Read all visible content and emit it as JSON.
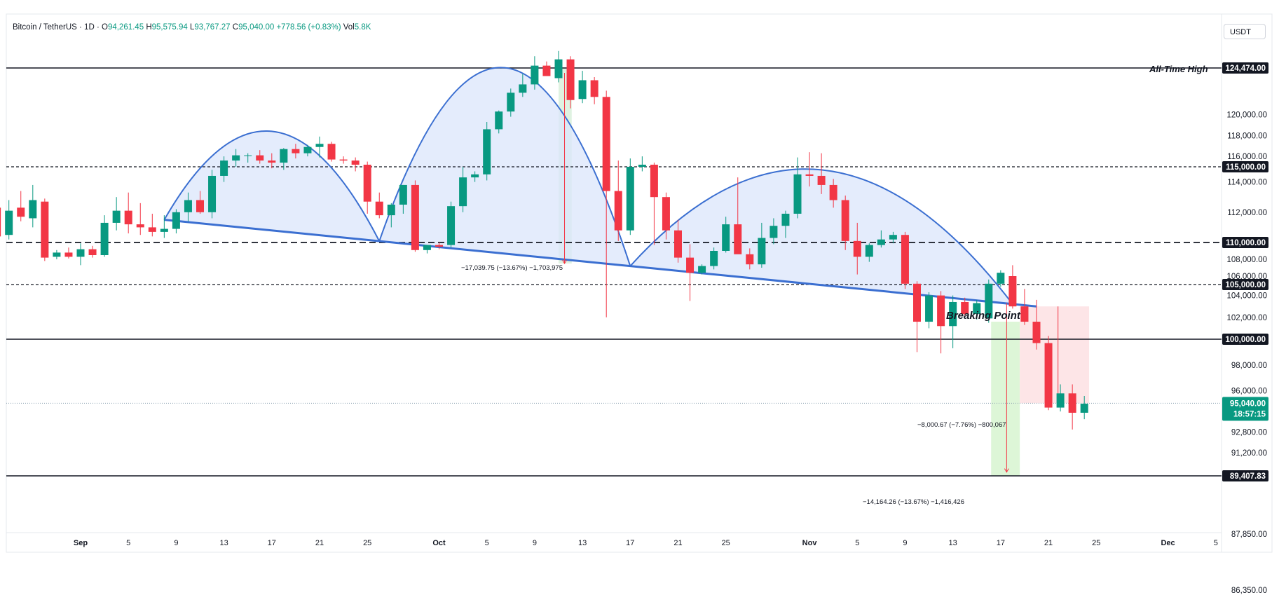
{
  "header": {
    "symbol": "Bitcoin / TetherUS · 1D ·",
    "o_label": "O",
    "o_value": "94,261.45",
    "h_label": "H",
    "h_value": "95,575.94",
    "l_label": "L",
    "l_value": "93,767.27",
    "c_label": "C",
    "c_value": "95,040.00",
    "change": "+778.56 (+0.83%)",
    "vol_label": "Vol",
    "vol_value": "5.8K"
  },
  "currency_button": "USDT",
  "colors": {
    "up": "#089981",
    "down": "#f23645",
    "pattern": "#3b6fd1",
    "pattern_fill": "#dbe5fb",
    "level": "#131722"
  },
  "chart_data": {
    "type": "candlestick",
    "y_axis_ticks": [
      "120,000.00",
      "118,000.00",
      "116,000.00",
      "114,000.00",
      "112,000.00",
      "108,000.00",
      "106,000.00",
      "104,000.00",
      "102,000.00",
      "98,000.00",
      "96,000.00",
      "92,800.00",
      "91,200.00",
      "87,850.00",
      "86,350.00"
    ],
    "x_axis_ticks": [
      {
        "label": "Sep",
        "day": 0
      },
      {
        "label": "5",
        "day": 4
      },
      {
        "label": "9",
        "day": 8
      },
      {
        "label": "13",
        "day": 12
      },
      {
        "label": "17",
        "day": 16
      },
      {
        "label": "21",
        "day": 20
      },
      {
        "label": "25",
        "day": 24
      },
      {
        "label": "Oct",
        "day": 30
      },
      {
        "label": "5",
        "day": 34
      },
      {
        "label": "9",
        "day": 38
      },
      {
        "label": "13",
        "day": 42
      },
      {
        "label": "17",
        "day": 46
      },
      {
        "label": "21",
        "day": 50
      },
      {
        "label": "25",
        "day": 54
      },
      {
        "label": "Nov",
        "day": 61
      },
      {
        "label": "5",
        "day": 65
      },
      {
        "label": "9",
        "day": 69
      },
      {
        "label": "13",
        "day": 73
      },
      {
        "label": "17",
        "day": 77
      },
      {
        "label": "21",
        "day": 81
      },
      {
        "label": "25",
        "day": 85
      },
      {
        "label": "Dec",
        "day": 91
      },
      {
        "label": "5",
        "day": 95
      }
    ],
    "candles": [
      {
        "t": -7,
        "o": 112300,
        "h": 113200,
        "l": 109200,
        "c": 110400
      },
      {
        "t": -6,
        "o": 110500,
        "h": 112800,
        "l": 110200,
        "c": 112100
      },
      {
        "t": -5,
        "o": 112300,
        "h": 113400,
        "l": 111400,
        "c": 111700
      },
      {
        "t": -4,
        "o": 111600,
        "h": 113800,
        "l": 111000,
        "c": 112800
      },
      {
        "t": -3,
        "o": 112700,
        "h": 112900,
        "l": 107800,
        "c": 108200
      },
      {
        "t": -2,
        "o": 108300,
        "h": 109100,
        "l": 108000,
        "c": 108800
      },
      {
        "t": -1,
        "o": 108800,
        "h": 109400,
        "l": 108100,
        "c": 108300
      },
      {
        "t": 0,
        "o": 108300,
        "h": 109900,
        "l": 107300,
        "c": 109200
      },
      {
        "t": 1,
        "o": 109200,
        "h": 109600,
        "l": 108200,
        "c": 108500
      },
      {
        "t": 2,
        "o": 108500,
        "h": 111800,
        "l": 108300,
        "c": 111300
      },
      {
        "t": 3,
        "o": 111300,
        "h": 113000,
        "l": 110800,
        "c": 112100
      },
      {
        "t": 4,
        "o": 112100,
        "h": 113300,
        "l": 110600,
        "c": 111200
      },
      {
        "t": 5,
        "o": 111200,
        "h": 112600,
        "l": 110500,
        "c": 111000
      },
      {
        "t": 6,
        "o": 111000,
        "h": 111900,
        "l": 110400,
        "c": 110700
      },
      {
        "t": 7,
        "o": 110700,
        "h": 111800,
        "l": 110300,
        "c": 110900
      },
      {
        "t": 8,
        "o": 110900,
        "h": 112200,
        "l": 110600,
        "c": 112000
      },
      {
        "t": 9,
        "o": 112000,
        "h": 113300,
        "l": 111400,
        "c": 112800
      },
      {
        "t": 10,
        "o": 112800,
        "h": 113400,
        "l": 111900,
        "c": 112000
      },
      {
        "t": 11,
        "o": 112000,
        "h": 114800,
        "l": 111600,
        "c": 114400
      },
      {
        "t": 12,
        "o": 114400,
        "h": 116000,
        "l": 114000,
        "c": 115600
      },
      {
        "t": 13,
        "o": 115600,
        "h": 116700,
        "l": 115000,
        "c": 116100
      },
      {
        "t": 14,
        "o": 116100,
        "h": 116300,
        "l": 115400,
        "c": 116100
      },
      {
        "t": 15,
        "o": 116100,
        "h": 116600,
        "l": 115300,
        "c": 115600
      },
      {
        "t": 16,
        "o": 115600,
        "h": 116300,
        "l": 114900,
        "c": 115400
      },
      {
        "t": 17,
        "o": 115400,
        "h": 116800,
        "l": 114800,
        "c": 116700
      },
      {
        "t": 18,
        "o": 116700,
        "h": 117200,
        "l": 115800,
        "c": 116300
      },
      {
        "t": 19,
        "o": 116300,
        "h": 117100,
        "l": 116000,
        "c": 116900
      },
      {
        "t": 20,
        "o": 116900,
        "h": 117900,
        "l": 115900,
        "c": 117200
      },
      {
        "t": 21,
        "o": 117200,
        "h": 117400,
        "l": 115500,
        "c": 115700
      },
      {
        "t": 22,
        "o": 115700,
        "h": 116000,
        "l": 115300,
        "c": 115600
      },
      {
        "t": 23,
        "o": 115600,
        "h": 115900,
        "l": 114700,
        "c": 115200
      },
      {
        "t": 24,
        "o": 115200,
        "h": 115500,
        "l": 111900,
        "c": 112700
      },
      {
        "t": 25,
        "o": 112700,
        "h": 113300,
        "l": 111600,
        "c": 111800
      },
      {
        "t": 26,
        "o": 111800,
        "h": 112600,
        "l": 111000,
        "c": 112500
      },
      {
        "t": 27,
        "o": 112500,
        "h": 113800,
        "l": 111900,
        "c": 113800
      },
      {
        "t": 28,
        "o": 113800,
        "h": 114100,
        "l": 108900,
        "c": 109100
      },
      {
        "t": 29,
        "o": 109100,
        "h": 109700,
        "l": 108700,
        "c": 109700
      },
      {
        "t": 30,
        "o": 109700,
        "h": 110000,
        "l": 109200,
        "c": 109500
      },
      {
        "t": 31,
        "o": 109700,
        "h": 112700,
        "l": 109400,
        "c": 112400
      },
      {
        "t": 32,
        "o": 112400,
        "h": 115000,
        "l": 112000,
        "c": 114300
      },
      {
        "t": 33,
        "o": 114300,
        "h": 114700,
        "l": 114000,
        "c": 114500
      },
      {
        "t": 34,
        "o": 114500,
        "h": 119300,
        "l": 114100,
        "c": 118600
      },
      {
        "t": 35,
        "o": 118600,
        "h": 120400,
        "l": 118200,
        "c": 120300
      },
      {
        "t": 36,
        "o": 120300,
        "h": 122500,
        "l": 119800,
        "c": 122100
      },
      {
        "t": 37,
        "o": 122100,
        "h": 123900,
        "l": 121700,
        "c": 122900
      },
      {
        "t": 38,
        "o": 122900,
        "h": 125600,
        "l": 122400,
        "c": 124700
      },
      {
        "t": 39,
        "o": 124700,
        "h": 125100,
        "l": 123900,
        "c": 123700
      },
      {
        "t": 40,
        "o": 123500,
        "h": 126100,
        "l": 123100,
        "c": 125300
      },
      {
        "t": 41,
        "o": 125300,
        "h": 125600,
        "l": 120600,
        "c": 121400
      },
      {
        "t": 42,
        "o": 121500,
        "h": 124200,
        "l": 121100,
        "c": 123300
      },
      {
        "t": 43,
        "o": 123300,
        "h": 123600,
        "l": 121000,
        "c": 121700
      },
      {
        "t": 44,
        "o": 121700,
        "h": 122300,
        "l": 102000,
        "c": 113400
      },
      {
        "t": 45,
        "o": 113400,
        "h": 115600,
        "l": 110100,
        "c": 110800
      },
      {
        "t": 46,
        "o": 110800,
        "h": 115800,
        "l": 110500,
        "c": 115000
      },
      {
        "t": 47,
        "o": 115000,
        "h": 116000,
        "l": 114700,
        "c": 115200
      },
      {
        "t": 48,
        "o": 115200,
        "h": 115400,
        "l": 109700,
        "c": 113000
      },
      {
        "t": 49,
        "o": 113000,
        "h": 113300,
        "l": 110200,
        "c": 110800
      },
      {
        "t": 50,
        "o": 110800,
        "h": 111500,
        "l": 107600,
        "c": 108200
      },
      {
        "t": 51,
        "o": 108200,
        "h": 109800,
        "l": 103500,
        "c": 106400
      },
      {
        "t": 52,
        "o": 106400,
        "h": 107400,
        "l": 106200,
        "c": 107200
      },
      {
        "t": 53,
        "o": 107200,
        "h": 109400,
        "l": 106800,
        "c": 109000
      },
      {
        "t": 54,
        "o": 109000,
        "h": 111700,
        "l": 108800,
        "c": 111200
      },
      {
        "t": 55,
        "o": 111200,
        "h": 114300,
        "l": 108700,
        "c": 108600
      },
      {
        "t": 56,
        "o": 108600,
        "h": 109300,
        "l": 106800,
        "c": 107400
      },
      {
        "t": 57,
        "o": 107400,
        "h": 111300,
        "l": 107000,
        "c": 110300
      },
      {
        "t": 58,
        "o": 110300,
        "h": 111600,
        "l": 109800,
        "c": 111100
      },
      {
        "t": 59,
        "o": 111100,
        "h": 112100,
        "l": 110300,
        "c": 111900
      },
      {
        "t": 60,
        "o": 111900,
        "h": 115900,
        "l": 111600,
        "c": 114500
      },
      {
        "t": 61,
        "o": 114500,
        "h": 116400,
        "l": 113700,
        "c": 114400
      },
      {
        "t": 62,
        "o": 114400,
        "h": 116300,
        "l": 113200,
        "c": 113800
      },
      {
        "t": 63,
        "o": 113800,
        "h": 114200,
        "l": 112300,
        "c": 112800
      },
      {
        "t": 64,
        "o": 112800,
        "h": 113100,
        "l": 109100,
        "c": 110100
      },
      {
        "t": 65,
        "o": 110100,
        "h": 111300,
        "l": 106200,
        "c": 108300
      },
      {
        "t": 66,
        "o": 108300,
        "h": 109900,
        "l": 107700,
        "c": 109700
      },
      {
        "t": 67,
        "o": 109700,
        "h": 110800,
        "l": 109400,
        "c": 110200
      },
      {
        "t": 68,
        "o": 110200,
        "h": 110700,
        "l": 109900,
        "c": 110500
      },
      {
        "t": 69,
        "o": 110500,
        "h": 110700,
        "l": 104600,
        "c": 105100
      },
      {
        "t": 70,
        "o": 105100,
        "h": 105400,
        "l": 99000,
        "c": 101600
      },
      {
        "t": 71,
        "o": 101600,
        "h": 104300,
        "l": 101000,
        "c": 104000
      },
      {
        "t": 72,
        "o": 104000,
        "h": 104400,
        "l": 98900,
        "c": 101200
      },
      {
        "t": 73,
        "o": 101200,
        "h": 104000,
        "l": 99300,
        "c": 103400
      },
      {
        "t": 74,
        "o": 103400,
        "h": 103800,
        "l": 102100,
        "c": 102300
      },
      {
        "t": 75,
        "o": 102300,
        "h": 103600,
        "l": 101800,
        "c": 103300
      },
      {
        "t": 76,
        "o": 101900,
        "h": 105600,
        "l": 101500,
        "c": 105100
      },
      {
        "t": 77,
        "o": 105100,
        "h": 106700,
        "l": 104800,
        "c": 106400
      },
      {
        "t": 78,
        "o": 106000,
        "h": 107300,
        "l": 102800,
        "c": 103000
      },
      {
        "t": 79,
        "o": 103000,
        "h": 104600,
        "l": 101300,
        "c": 101600
      },
      {
        "t": 80,
        "o": 101600,
        "h": 103600,
        "l": 99200,
        "c": 99700
      },
      {
        "t": 81,
        "o": 99700,
        "h": 100300,
        "l": 94500,
        "c": 94700
      },
      {
        "t": 82,
        "o": 94700,
        "h": 96500,
        "l": 94400,
        "c": 95800
      },
      {
        "t": 83,
        "o": 95800,
        "h": 96500,
        "l": 93000,
        "c": 94300
      },
      {
        "t": 84,
        "o": 94300,
        "h": 95600,
        "l": 93800,
        "c": 95000
      }
    ],
    "levels": [
      {
        "price": 124474.0,
        "label": "124,474.00",
        "style": "solid",
        "note": "All-Time High"
      },
      {
        "price": 115000.0,
        "label": "115,000.00",
        "style": "dashed-fine",
        "note": ""
      },
      {
        "price": 110000.0,
        "label": "110,000.00",
        "style": "dashed-bold",
        "note": ""
      },
      {
        "price": 105000.0,
        "label": "105,000.00",
        "style": "dashed-fine",
        "note": ""
      },
      {
        "price": 100000.0,
        "label": "100,000.00",
        "style": "solid",
        "note": ""
      },
      {
        "price": 89407.83,
        "label": "89,407.83",
        "style": "solid",
        "note": ""
      }
    ],
    "last_price": {
      "value": "95,040.00",
      "price": 95040,
      "countdown": "18:57:15"
    },
    "pattern": {
      "left_shoulder": {
        "from_day": 7,
        "to_day": 25,
        "peak": 118400
      },
      "head": {
        "from_day": 25,
        "to_day": 46,
        "peak": 124500
      },
      "right_shoulder": {
        "from_day": 46,
        "to_day": 78,
        "peak": 114800
      },
      "neckline": {
        "from": {
          "day": 7,
          "price": 111500
        },
        "to": {
          "day": 80,
          "price": 103000
        }
      }
    },
    "annotations": {
      "breaking_point": "Breaking Point",
      "measure1": "−17,039.75 (−13.67%) −1,703,975",
      "measure2": "−8,000.67 (−7.76%) −800,067",
      "measure3": "−14,164.26 (−13.67%) −1,416,426"
    }
  }
}
